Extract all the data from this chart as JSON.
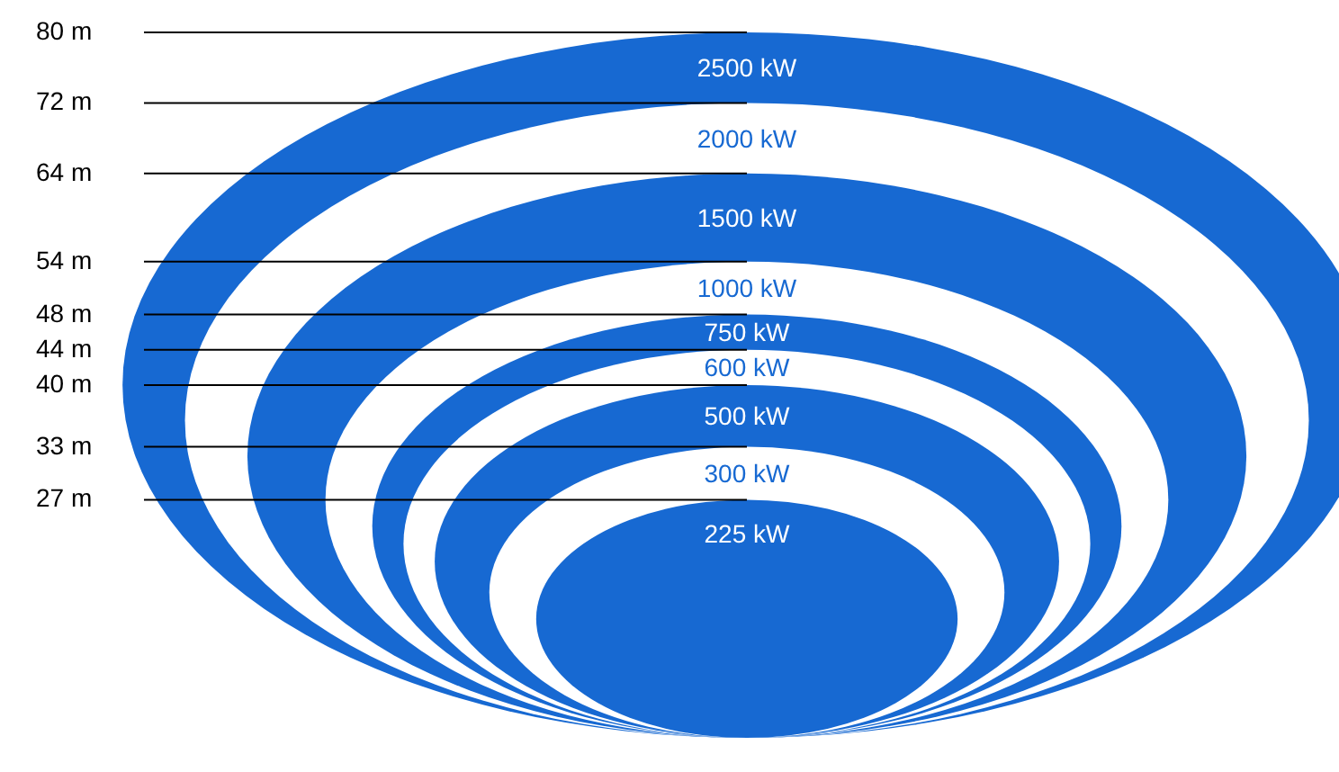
{
  "chart_data": {
    "type": "other",
    "categories": [
      "2500 kW",
      "2000 kW",
      "1500 kW",
      "1000 kW",
      "750 kW",
      "600 kW",
      "500 kW",
      "300 kW",
      "225 kW"
    ],
    "values": [
      80,
      72,
      64,
      54,
      48,
      44,
      40,
      33,
      27
    ],
    "value_labels": [
      "80 m",
      "72 m",
      "64 m",
      "54 m",
      "48 m",
      "44 m",
      "40 m",
      "33 m",
      "27 m"
    ],
    "colors": [
      "#1769d2",
      "#ffffff",
      "#1769d2",
      "#ffffff",
      "#1769d2",
      "#ffffff",
      "#1769d2",
      "#ffffff",
      "#1769d2"
    ]
  }
}
